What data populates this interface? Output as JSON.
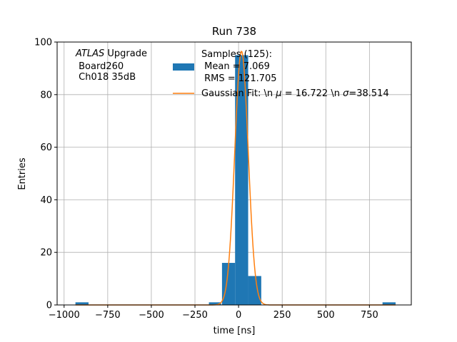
{
  "chart_data": {
    "type": "bar",
    "title": "Run 738",
    "xlabel": "time [ns]",
    "ylabel": "Entries",
    "xlim": [
      -1040,
      990
    ],
    "ylim": [
      0,
      100
    ],
    "xticks": [
      -1000,
      -750,
      -500,
      -250,
      0,
      250,
      500,
      750
    ],
    "xtick_labels": [
      "−1000",
      "−750",
      "−500",
      "−250",
      "0",
      "250",
      "500",
      "750"
    ],
    "yticks": [
      0,
      20,
      40,
      60,
      80,
      100
    ],
    "ytick_labels": [
      "0",
      "20",
      "40",
      "60",
      "80",
      "100"
    ],
    "grid": true,
    "legend_position": "top-right",
    "annotation": {
      "line1_italic": "ATLAS",
      "line1_rest": " Upgrade",
      "line2": " Board260",
      "line3": " Ch018 35dB"
    },
    "series": [
      {
        "name_lines": [
          "Samples (125):",
          " Mean = 7.069",
          " RMS = 121.705"
        ],
        "type": "histogram",
        "color": "#1f77b4",
        "bins": [
          {
            "x0": -935,
            "x1": -860,
            "count": 1
          },
          {
            "x0": -170,
            "x1": -100,
            "count": 1
          },
          {
            "x0": -95,
            "x1": -20,
            "count": 16
          },
          {
            "x0": -20,
            "x1": 55,
            "count": 95
          },
          {
            "x0": 55,
            "x1": 130,
            "count": 11
          },
          {
            "x0": 825,
            "x1": 900,
            "count": 1
          }
        ]
      },
      {
        "name_prefix": "Gaussian Fit: \\n ",
        "name_mu": "μ",
        "name_mid": " = 16.722 \\n ",
        "name_sigma": "σ",
        "name_suffix": "=38.514",
        "type": "line",
        "color": "#ff7f0e",
        "amplitude": 96.5,
        "mu": 16.722,
        "sigma": 38.514,
        "x_range": [
          -935,
          900
        ]
      }
    ]
  }
}
